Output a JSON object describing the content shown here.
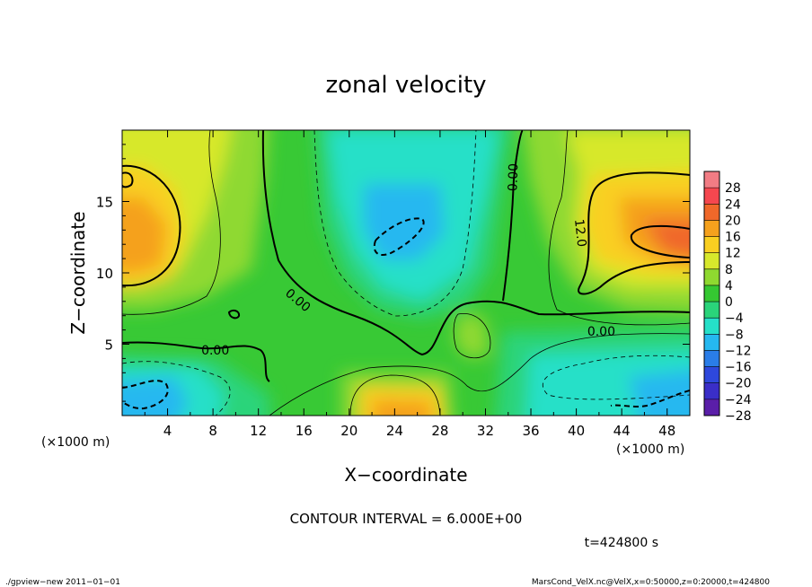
{
  "chart_data": {
    "type": "heatmap",
    "title": "zonal velocity",
    "xlabel": "X−coordinate",
    "ylabel": "Z−coordinate",
    "x_unit_left": "(×1000 m)",
    "x_unit_right": "(×1000 m)",
    "xlim": [
      0,
      50
    ],
    "ylim": [
      0,
      20
    ],
    "x_ticks": [
      "4",
      "8",
      "12",
      "16",
      "20",
      "24",
      "28",
      "32",
      "36",
      "40",
      "44",
      "48"
    ],
    "x_tick_values": [
      4,
      8,
      12,
      16,
      20,
      24,
      28,
      32,
      36,
      40,
      44,
      48
    ],
    "y_ticks": [
      "5",
      "10",
      "15"
    ],
    "y_tick_values": [
      5,
      10,
      15
    ],
    "colorbar": {
      "labels": [
        "28",
        "24",
        "20",
        "16",
        "12",
        "8",
        "4",
        "0",
        "−4",
        "−8",
        "−12",
        "−16",
        "−20",
        "−24",
        "−28"
      ],
      "levels": [
        30,
        26,
        22,
        18,
        14,
        10,
        6,
        2,
        -2,
        -6,
        -10,
        -14,
        -18,
        -22,
        -26,
        -30
      ],
      "colors": [
        "#f27c84",
        "#f5474f",
        "#f0682a",
        "#f5a11d",
        "#f9cf21",
        "#d7e82c",
        "#8fd930",
        "#35c832",
        "#2ad47a",
        "#25e0c8",
        "#25b8f0",
        "#2a7de8",
        "#2e48dc",
        "#3a2ec8",
        "#5a1ea8"
      ]
    },
    "contour_labels": [
      {
        "text": "0.00",
        "x": 8.2,
        "z": 4.6,
        "rotate": 0
      },
      {
        "text": "0.00",
        "x": 15.5,
        "z": 8.1,
        "rotate": 40
      },
      {
        "text": "0.00",
        "x": 34.4,
        "z": 16.7,
        "rotate": -88
      },
      {
        "text": "12.0",
        "x": 40.4,
        "z": 12.8,
        "rotate": 84
      },
      {
        "text": "0.00",
        "x": 42.2,
        "z": 5.9,
        "rotate": 0
      }
    ],
    "contour_interval_text": "CONTOUR INTERVAL = 6.000E+00",
    "time_text": "t=424800 s"
  },
  "footer": {
    "left": "./gpview−new   2011−01−01",
    "right": "MarsCond_VelX.nc@VelX,x=0:50000,z=0:20000,t=424800"
  }
}
